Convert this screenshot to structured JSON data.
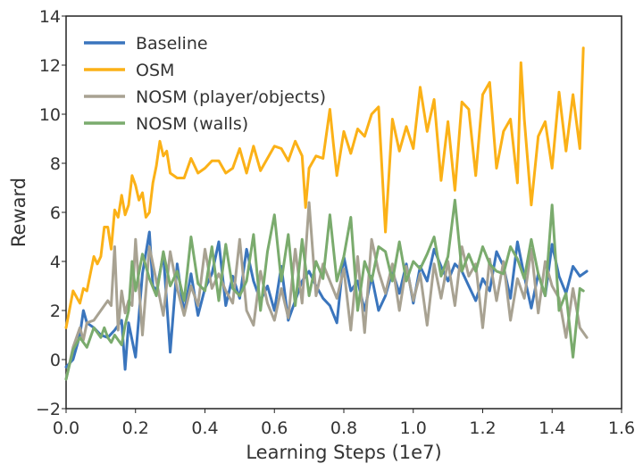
{
  "chart_data": {
    "type": "line",
    "title": "",
    "xlabel": "Learning Steps (1e7)",
    "ylabel": "Reward",
    "xlim": [
      0.0,
      1.6
    ],
    "ylim": [
      -2,
      14
    ],
    "xticks": [
      0.0,
      0.2,
      0.4,
      0.6,
      0.8,
      1.0,
      1.2,
      1.4,
      1.6
    ],
    "xtick_labels": [
      "0.0",
      "0.2",
      "0.4",
      "0.6",
      "0.8",
      "1.0",
      "1.2",
      "1.4",
      "1.6"
    ],
    "yticks": [
      -2,
      0,
      2,
      4,
      6,
      8,
      10,
      12,
      14
    ],
    "ytick_labels": [
      "−2",
      "0",
      "2",
      "4",
      "6",
      "8",
      "10",
      "12",
      "14"
    ],
    "grid": false,
    "legend_position": "upper-left",
    "series": [
      {
        "name": "Baseline",
        "color": "#3a75bd",
        "x": [
          0.0,
          0.02,
          0.04,
          0.05,
          0.06,
          0.08,
          0.1,
          0.12,
          0.14,
          0.16,
          0.17,
          0.18,
          0.2,
          0.22,
          0.24,
          0.25,
          0.26,
          0.28,
          0.3,
          0.32,
          0.34,
          0.36,
          0.38,
          0.4,
          0.42,
          0.44,
          0.46,
          0.48,
          0.5,
          0.52,
          0.54,
          0.56,
          0.58,
          0.6,
          0.62,
          0.64,
          0.66,
          0.68,
          0.7,
          0.72,
          0.74,
          0.76,
          0.78,
          0.8,
          0.82,
          0.84,
          0.86,
          0.88,
          0.9,
          0.92,
          0.94,
          0.96,
          0.98,
          1.0,
          1.02,
          1.04,
          1.06,
          1.08,
          1.1,
          1.12,
          1.14,
          1.16,
          1.18,
          1.2,
          1.22,
          1.24,
          1.26,
          1.28,
          1.3,
          1.32,
          1.34,
          1.36,
          1.38,
          1.4,
          1.42,
          1.44,
          1.46,
          1.48,
          1.5
        ],
        "values": [
          -0.3,
          0.0,
          1.0,
          2.0,
          1.5,
          1.3,
          1.0,
          0.9,
          1.2,
          1.6,
          -0.4,
          1.5,
          0.1,
          3.5,
          5.2,
          3.0,
          2.8,
          4.3,
          0.3,
          3.9,
          1.9,
          3.5,
          1.8,
          2.9,
          3.5,
          4.8,
          2.2,
          3.4,
          2.5,
          4.5,
          3.2,
          2.4,
          3.0,
          2.0,
          3.8,
          1.6,
          2.4,
          3.2,
          3.6,
          3.0,
          2.5,
          2.2,
          1.5,
          4.2,
          2.8,
          3.2,
          2.0,
          3.4,
          2.0,
          2.6,
          3.6,
          2.7,
          3.9,
          2.3,
          3.8,
          3.2,
          4.5,
          3.8,
          3.2,
          3.9,
          3.6,
          3.0,
          2.4,
          3.3,
          2.8,
          4.4,
          3.8,
          2.5,
          4.8,
          3.4,
          2.1,
          3.5,
          2.6,
          4.7,
          3.4,
          2.7,
          3.8,
          3.4,
          3.6
        ]
      },
      {
        "name": "OSM",
        "color": "#fbb117",
        "x": [
          0.0,
          0.02,
          0.04,
          0.05,
          0.06,
          0.08,
          0.09,
          0.1,
          0.11,
          0.12,
          0.13,
          0.14,
          0.15,
          0.16,
          0.17,
          0.18,
          0.19,
          0.2,
          0.21,
          0.22,
          0.23,
          0.24,
          0.25,
          0.26,
          0.27,
          0.28,
          0.29,
          0.3,
          0.32,
          0.34,
          0.36,
          0.38,
          0.4,
          0.42,
          0.44,
          0.46,
          0.48,
          0.5,
          0.52,
          0.54,
          0.56,
          0.58,
          0.6,
          0.62,
          0.64,
          0.66,
          0.68,
          0.69,
          0.7,
          0.72,
          0.74,
          0.76,
          0.77,
          0.78,
          0.8,
          0.82,
          0.84,
          0.86,
          0.88,
          0.9,
          0.92,
          0.94,
          0.96,
          0.98,
          1.0,
          1.02,
          1.04,
          1.06,
          1.08,
          1.1,
          1.12,
          1.14,
          1.16,
          1.18,
          1.2,
          1.22,
          1.24,
          1.26,
          1.28,
          1.3,
          1.31,
          1.32,
          1.34,
          1.36,
          1.38,
          1.4,
          1.42,
          1.44,
          1.46,
          1.48,
          1.49
        ],
        "values": [
          1.3,
          2.8,
          2.3,
          2.9,
          2.8,
          4.2,
          3.9,
          4.2,
          5.4,
          5.4,
          4.5,
          6.1,
          5.8,
          6.7,
          5.9,
          6.3,
          7.5,
          7.1,
          6.5,
          6.8,
          5.8,
          6.0,
          7.2,
          7.9,
          8.9,
          8.3,
          8.5,
          7.6,
          7.4,
          7.4,
          8.2,
          7.6,
          7.8,
          8.1,
          8.1,
          7.6,
          7.8,
          8.6,
          7.6,
          8.7,
          7.7,
          8.2,
          8.7,
          8.6,
          8.1,
          8.9,
          8.3,
          6.2,
          7.8,
          8.3,
          8.2,
          10.2,
          8.8,
          7.5,
          9.3,
          8.4,
          9.4,
          9.1,
          10.0,
          10.3,
          5.2,
          9.8,
          8.5,
          9.5,
          8.6,
          11.1,
          9.3,
          10.6,
          7.3,
          9.7,
          6.9,
          10.5,
          10.2,
          7.5,
          10.8,
          11.3,
          7.8,
          9.3,
          9.8,
          7.2,
          12.1,
          9.8,
          6.3,
          9.1,
          9.7,
          7.8,
          10.9,
          8.5,
          10.8,
          8.6,
          12.7
        ]
      },
      {
        "name": "NOSM (player/objects)",
        "color": "#a8a292",
        "x": [
          0.0,
          0.02,
          0.04,
          0.05,
          0.06,
          0.08,
          0.1,
          0.12,
          0.13,
          0.14,
          0.15,
          0.16,
          0.17,
          0.18,
          0.19,
          0.2,
          0.22,
          0.24,
          0.26,
          0.28,
          0.3,
          0.32,
          0.34,
          0.36,
          0.38,
          0.4,
          0.42,
          0.44,
          0.46,
          0.48,
          0.5,
          0.52,
          0.54,
          0.56,
          0.58,
          0.6,
          0.62,
          0.64,
          0.66,
          0.68,
          0.7,
          0.72,
          0.74,
          0.76,
          0.78,
          0.8,
          0.82,
          0.84,
          0.86,
          0.88,
          0.9,
          0.92,
          0.94,
          0.96,
          0.98,
          1.0,
          1.02,
          1.04,
          1.06,
          1.08,
          1.1,
          1.12,
          1.14,
          1.16,
          1.18,
          1.2,
          1.22,
          1.24,
          1.26,
          1.28,
          1.3,
          1.32,
          1.34,
          1.36,
          1.38,
          1.4,
          1.42,
          1.44,
          1.46,
          1.48,
          1.5
        ],
        "values": [
          -0.8,
          0.5,
          1.3,
          0.8,
          1.5,
          1.6,
          2.0,
          2.4,
          2.2,
          4.6,
          1.2,
          2.8,
          1.9,
          2.4,
          2.2,
          4.9,
          1.0,
          4.6,
          3.2,
          1.8,
          4.4,
          2.9,
          1.8,
          3.0,
          2.2,
          4.5,
          2.9,
          3.5,
          2.8,
          2.3,
          4.9,
          2.0,
          1.4,
          3.6,
          2.3,
          1.6,
          2.9,
          1.7,
          4.5,
          2.3,
          6.4,
          2.6,
          3.9,
          3.2,
          2.5,
          3.7,
          1.2,
          4.2,
          1.1,
          4.9,
          3.6,
          2.7,
          3.9,
          2.0,
          3.8,
          2.4,
          3.5,
          1.4,
          3.9,
          2.5,
          4.0,
          2.2,
          4.6,
          3.4,
          3.9,
          1.3,
          4.1,
          2.4,
          4.0,
          1.6,
          3.3,
          2.5,
          4.5,
          1.9,
          4.0,
          3.0,
          2.5,
          0.9,
          2.9,
          1.3,
          0.9
        ]
      },
      {
        "name": "NOSM (walls)",
        "color": "#7aab6d",
        "x": [
          0.0,
          0.02,
          0.04,
          0.06,
          0.08,
          0.1,
          0.11,
          0.12,
          0.13,
          0.14,
          0.16,
          0.17,
          0.18,
          0.19,
          0.2,
          0.22,
          0.24,
          0.26,
          0.28,
          0.3,
          0.32,
          0.34,
          0.36,
          0.38,
          0.4,
          0.42,
          0.44,
          0.46,
          0.48,
          0.5,
          0.52,
          0.54,
          0.56,
          0.58,
          0.6,
          0.62,
          0.64,
          0.66,
          0.68,
          0.7,
          0.72,
          0.74,
          0.76,
          0.78,
          0.8,
          0.82,
          0.84,
          0.86,
          0.88,
          0.9,
          0.92,
          0.94,
          0.96,
          0.98,
          1.0,
          1.02,
          1.04,
          1.06,
          1.08,
          1.1,
          1.12,
          1.14,
          1.16,
          1.18,
          1.2,
          1.22,
          1.24,
          1.26,
          1.28,
          1.3,
          1.32,
          1.34,
          1.36,
          1.38,
          1.4,
          1.42,
          1.44,
          1.46,
          1.48,
          1.49
        ],
        "values": [
          -0.8,
          0.4,
          0.9,
          0.5,
          1.3,
          0.9,
          1.3,
          0.9,
          0.7,
          1.0,
          0.6,
          1.4,
          2.0,
          4.0,
          2.8,
          4.3,
          3.3,
          2.6,
          4.4,
          3.0,
          3.6,
          2.4,
          5.0,
          3.1,
          2.8,
          4.6,
          2.4,
          4.7,
          2.9,
          2.6,
          3.2,
          5.1,
          2.0,
          4.4,
          5.9,
          3.2,
          5.1,
          2.2,
          4.9,
          2.6,
          4.0,
          3.3,
          5.9,
          3.2,
          4.2,
          5.8,
          2.0,
          4.0,
          3.2,
          4.6,
          4.4,
          3.2,
          4.8,
          3.2,
          4.0,
          3.7,
          4.3,
          5.0,
          3.4,
          4.2,
          6.5,
          3.6,
          4.3,
          3.6,
          4.6,
          3.9,
          3.6,
          3.5,
          4.6,
          4.1,
          3.3,
          4.9,
          3.5,
          2.6,
          6.3,
          2.0,
          2.7,
          0.1,
          2.9,
          2.8
        ]
      }
    ]
  }
}
